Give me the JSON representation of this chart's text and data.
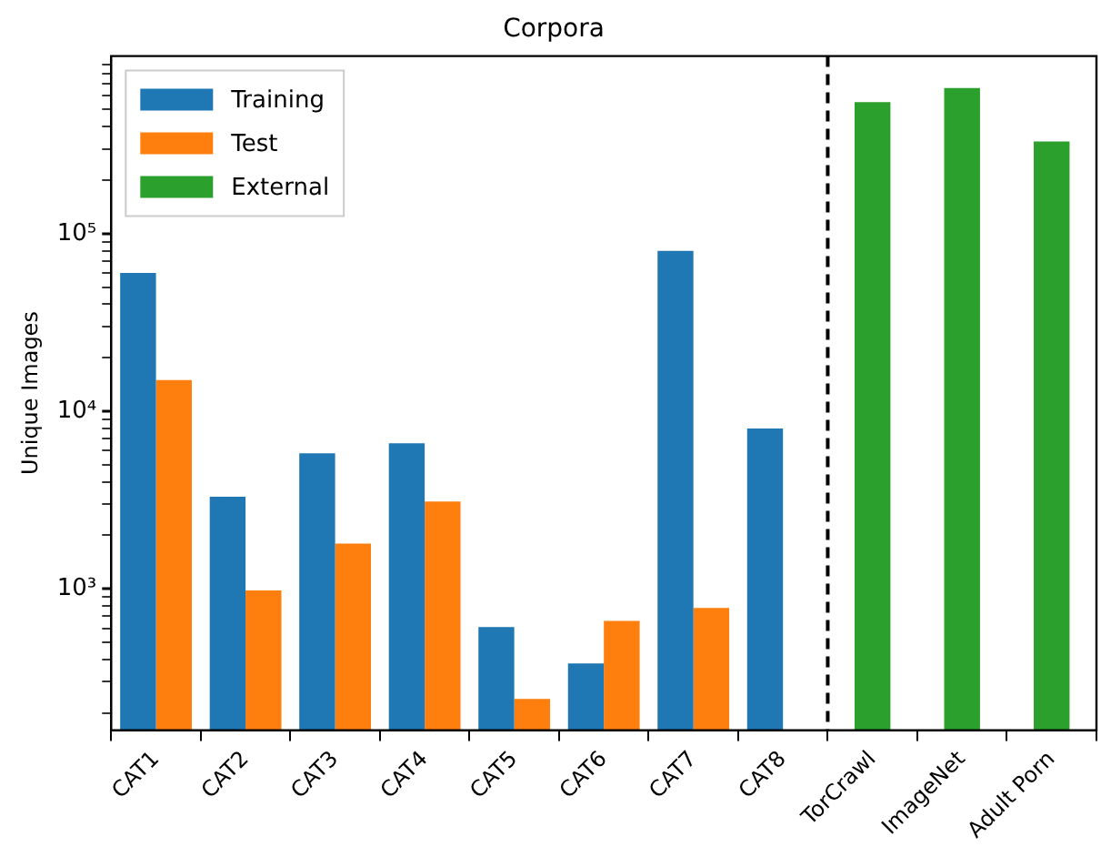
{
  "chart_data": {
    "type": "bar",
    "title": "Corpora",
    "ylabel": "Unique Images",
    "categories": [
      "CAT1",
      "CAT2",
      "CAT3",
      "CAT4",
      "CAT5",
      "CAT6",
      "CAT7",
      "CAT8",
      "TorCrawl",
      "ImageNet",
      "Adult Porn"
    ],
    "series": [
      {
        "name": "Training",
        "color": "#1f77b4",
        "values": [
          60000,
          3300,
          5800,
          6600,
          610,
          380,
          80000,
          8000,
          null,
          null,
          null
        ]
      },
      {
        "name": "Test",
        "color": "#ff7f0e",
        "values": [
          15000,
          980,
          1800,
          3100,
          240,
          660,
          780,
          null,
          null,
          null,
          null
        ]
      },
      {
        "name": "External",
        "color": "#2ca02c",
        "values": [
          null,
          null,
          null,
          null,
          null,
          null,
          null,
          null,
          550000,
          660000,
          330000
        ]
      }
    ],
    "log": "y",
    "ylim": [
      160,
      1000000
    ],
    "yticks": [
      {
        "value": 200,
        "label": null
      },
      {
        "value": 300,
        "label": null
      },
      {
        "value": 400,
        "label": null
      },
      {
        "value": 500,
        "label": null
      },
      {
        "value": 600,
        "label": null
      },
      {
        "value": 700,
        "label": null
      },
      {
        "value": 800,
        "label": null
      },
      {
        "value": 900,
        "label": null
      },
      {
        "value": 1000,
        "label": "10³"
      },
      {
        "value": 2000,
        "label": null
      },
      {
        "value": 3000,
        "label": null
      },
      {
        "value": 4000,
        "label": null
      },
      {
        "value": 5000,
        "label": null
      },
      {
        "value": 6000,
        "label": null
      },
      {
        "value": 7000,
        "label": null
      },
      {
        "value": 8000,
        "label": null
      },
      {
        "value": 9000,
        "label": null
      },
      {
        "value": 10000,
        "label": "10⁴"
      },
      {
        "value": 20000,
        "label": null
      },
      {
        "value": 30000,
        "label": null
      },
      {
        "value": 40000,
        "label": null
      },
      {
        "value": 50000,
        "label": null
      },
      {
        "value": 60000,
        "label": null
      },
      {
        "value": 70000,
        "label": null
      },
      {
        "value": 80000,
        "label": null
      },
      {
        "value": 90000,
        "label": null
      },
      {
        "value": 100000,
        "label": "10⁵"
      },
      {
        "value": 200000,
        "label": null
      },
      {
        "value": 300000,
        "label": null
      },
      {
        "value": 400000,
        "label": null
      },
      {
        "value": 500000,
        "label": null
      },
      {
        "value": 600000,
        "label": null
      },
      {
        "value": 700000,
        "label": null
      },
      {
        "value": 800000,
        "label": null
      },
      {
        "value": 900000,
        "label": null
      }
    ],
    "grid": false,
    "legend": "top left"
  }
}
